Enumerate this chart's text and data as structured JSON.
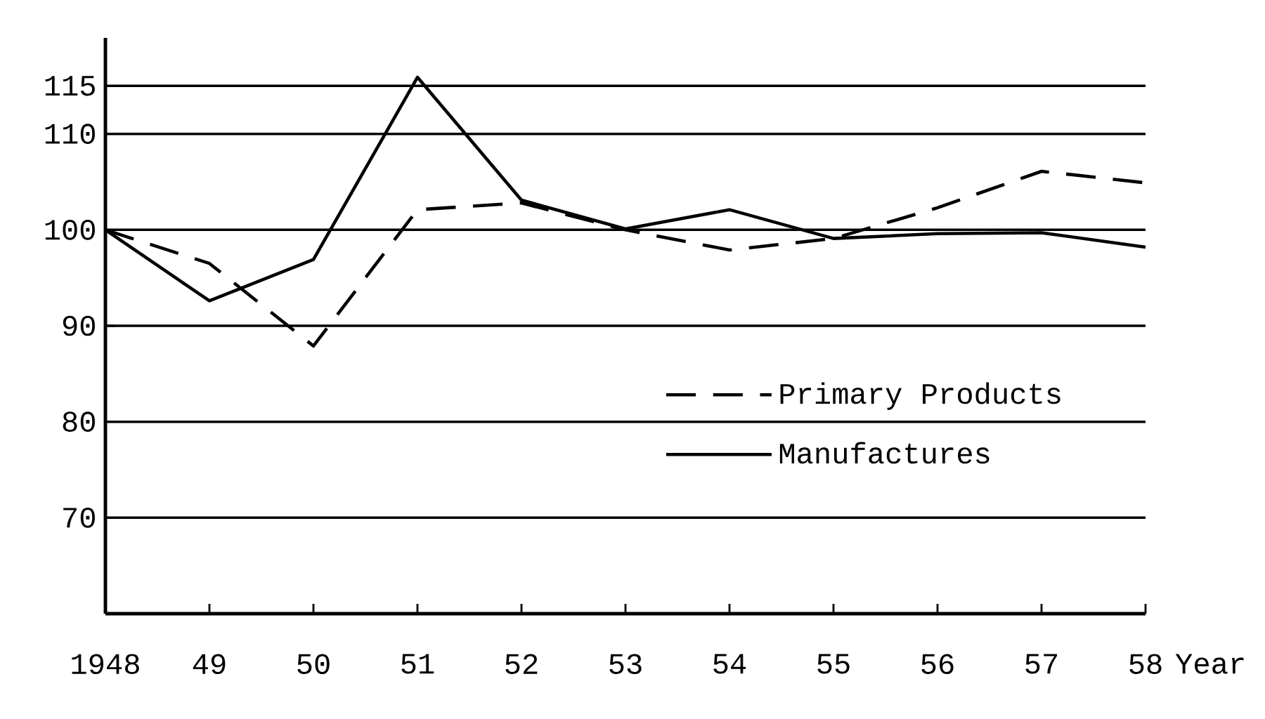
{
  "chart_data": {
    "type": "line",
    "xlabel": "Year",
    "categories": [
      "1948",
      "49",
      "50",
      "51",
      "52",
      "53",
      "54",
      "55",
      "56",
      "57",
      "58"
    ],
    "series": [
      {
        "name": "Primary Products",
        "color": "#000000",
        "line_style": "dashed",
        "values": [
          100,
          96.5,
          87.9,
          102.1,
          102.8,
          100,
          97.9,
          99.1,
          102.3,
          106.1,
          104.9
        ]
      },
      {
        "name": "Manufactures",
        "color": "#000000",
        "line_style": "solid",
        "values": [
          100,
          92.6,
          96.9,
          115.9,
          103.1,
          100.1,
          102.1,
          99.1,
          99.6,
          99.7,
          98.2
        ]
      }
    ],
    "ylim": [
      60,
      120
    ],
    "yticks": [
      70,
      80,
      90,
      100,
      110,
      115
    ],
    "grid": "y",
    "legend": "right",
    "marker": "none"
  }
}
